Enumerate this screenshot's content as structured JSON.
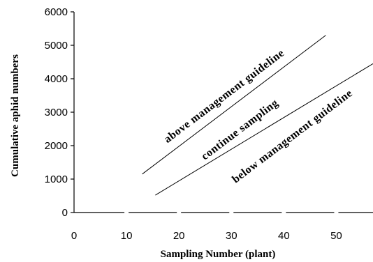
{
  "chart_data": {
    "type": "line",
    "xlabel": "Sampling Number (plant)",
    "ylabel": "Cumulative aphid numbers",
    "xlim": [
      0,
      57
    ],
    "ylim": [
      0,
      6000
    ],
    "x_ticks": [
      "0",
      "10",
      "20",
      "30",
      "40",
      "50"
    ],
    "y_ticks": [
      "0",
      "1000",
      "2000",
      "3000",
      "4000",
      "5000",
      "6000"
    ],
    "grid": false,
    "legend": "none",
    "series": [
      {
        "x": [
          13,
          48
        ],
        "y": [
          1150,
          5300
        ]
      },
      {
        "x": [
          15.5,
          57
        ],
        "y": [
          520,
          4450
        ]
      }
    ],
    "annotations": [
      {
        "text": "above management guideline",
        "x": 29,
        "y": 3400
      },
      {
        "text": "continue sampling",
        "x": 32,
        "y": 2400
      },
      {
        "text": "below management guideline",
        "x": 42,
        "y": 2200
      }
    ]
  }
}
